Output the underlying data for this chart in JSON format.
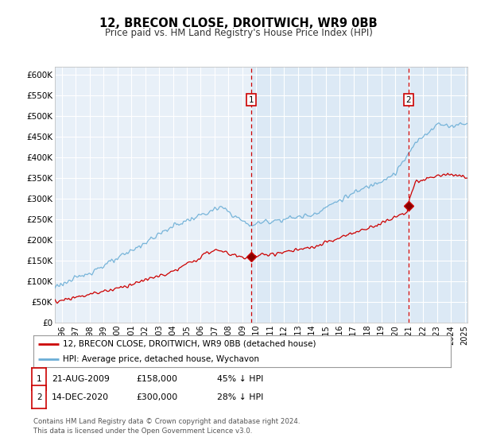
{
  "title": "12, BRECON CLOSE, DROITWICH, WR9 0BB",
  "subtitle": "Price paid vs. HM Land Registry's House Price Index (HPI)",
  "bg_color": "#ffffff",
  "plot_bg_color_left": "#e8f0f8",
  "plot_bg_color_right": "#dce9f5",
  "grid_color": "#ffffff",
  "ylim": [
    0,
    620000
  ],
  "yticks": [
    0,
    50000,
    100000,
    150000,
    200000,
    250000,
    300000,
    350000,
    400000,
    450000,
    500000,
    550000,
    600000
  ],
  "ytick_labels": [
    "£0",
    "£50K",
    "£100K",
    "£150K",
    "£200K",
    "£250K",
    "£300K",
    "£350K",
    "£400K",
    "£450K",
    "£500K",
    "£550K",
    "£600K"
  ],
  "transaction1_date": "21-AUG-2009",
  "transaction1_price": 158000,
  "transaction1_pct": "45%",
  "transaction2_date": "14-DEC-2020",
  "transaction2_price": 300000,
  "transaction2_pct": "28%",
  "legend_line1": "12, BRECON CLOSE, DROITWICH, WR9 0BB (detached house)",
  "legend_line2": "HPI: Average price, detached house, Wychavon",
  "footer1": "Contains HM Land Registry data © Crown copyright and database right 2024.",
  "footer2": "This data is licensed under the Open Government Licence v3.0.",
  "red_color": "#cc0000",
  "blue_color": "#6baed6",
  "transaction_x1": 2009.646,
  "transaction_x2": 2020.954,
  "xlim_start": 1995.5,
  "xlim_end": 2025.2
}
